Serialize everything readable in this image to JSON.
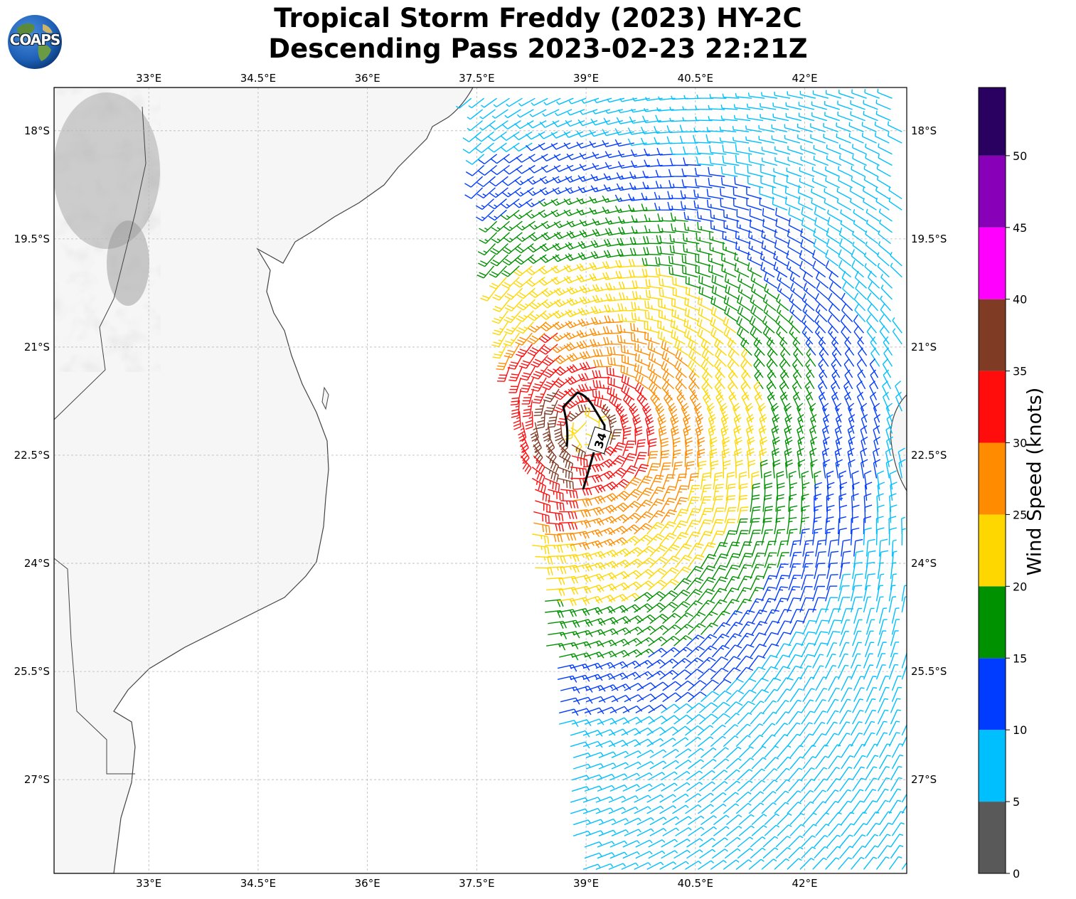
{
  "title": {
    "line1": "Tropical Storm Freddy (2023) HY-2C",
    "line2": "Descending Pass 2023-02-23 22:21Z"
  },
  "logo": {
    "text": "COAPS",
    "icon": "globe-icon"
  },
  "map": {
    "lon_ticks": [
      "33°E",
      "34.5°E",
      "36°E",
      "37.5°E",
      "39°E",
      "40.5°E",
      "42°E"
    ],
    "lat_ticks": [
      "18°S",
      "19.5°S",
      "21°S",
      "22.5°S",
      "24°S",
      "25.5°S",
      "27°S"
    ],
    "lon_values": [
      33,
      34.5,
      36,
      37.5,
      39,
      40.5,
      42
    ],
    "lat_values": [
      -18,
      -19.5,
      -21,
      -22.5,
      -24,
      -25.5,
      -27
    ],
    "extent": {
      "lon": [
        31.7,
        43.4
      ],
      "lat": [
        -28.3,
        -17.4
      ]
    },
    "contour_label": "34",
    "colors": {
      "land": "#f7f7f7",
      "coast": "#444444",
      "grid": "#b8b8b8",
      "contour": "#000000"
    }
  },
  "colorbar": {
    "label": "Wind Speed (knots)",
    "ticks": [
      "0",
      "5",
      "10",
      "15",
      "20",
      "25",
      "30",
      "35",
      "40",
      "45",
      "50"
    ],
    "bins": [
      {
        "range": "0-5",
        "color": "#595959"
      },
      {
        "range": "5-10",
        "color": "#00bfff"
      },
      {
        "range": "10-15",
        "color": "#003cff"
      },
      {
        "range": "15-20",
        "color": "#009100"
      },
      {
        "range": "20-25",
        "color": "#ffd700"
      },
      {
        "range": "25-30",
        "color": "#ff8c00"
      },
      {
        "range": "30-35",
        "color": "#ff0d0d"
      },
      {
        "range": "35-40",
        "color": "#7f3b24"
      },
      {
        "range": "40-45",
        "color": "#ff00ff"
      },
      {
        "range": "45-50",
        "color": "#8800b8"
      },
      {
        "range": "50+",
        "color": "#2a0060"
      }
    ]
  }
}
